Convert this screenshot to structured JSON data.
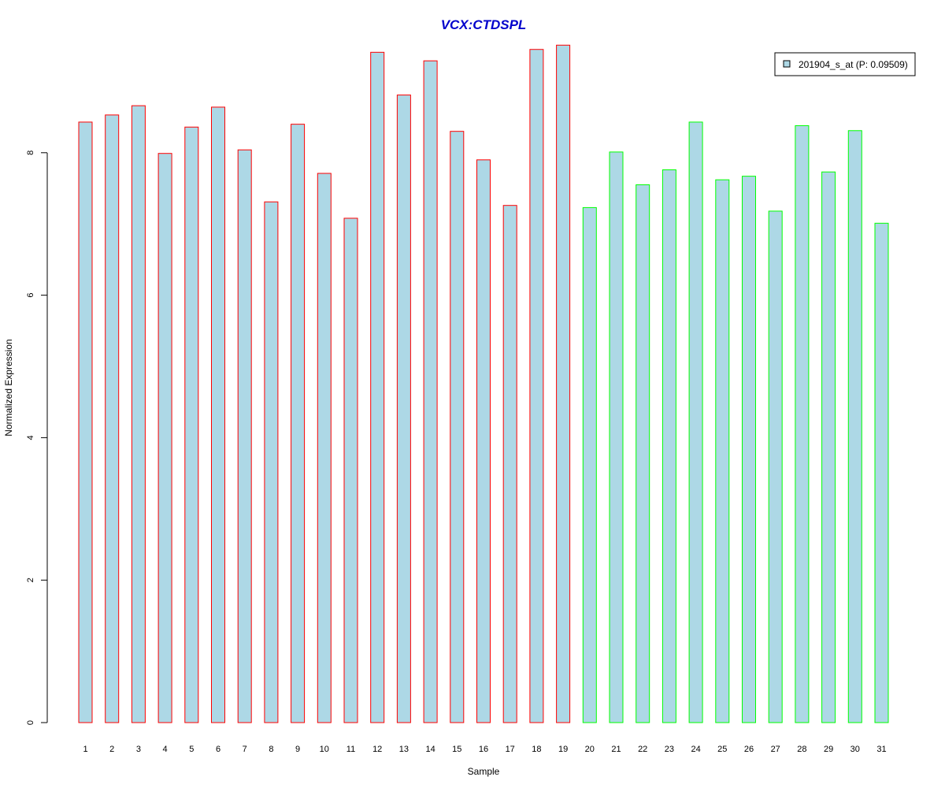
{
  "chart_data": {
    "type": "bar",
    "title": "VCX:CTDSPL",
    "xlabel": "Sample",
    "ylabel": "Normalized Expression",
    "ylim": [
      0,
      9.5
    ],
    "yticks": [
      0,
      2,
      4,
      6,
      8
    ],
    "categories": [
      "1",
      "2",
      "3",
      "4",
      "5",
      "6",
      "7",
      "8",
      "9",
      "10",
      "11",
      "12",
      "13",
      "14",
      "15",
      "16",
      "17",
      "18",
      "19",
      "20",
      "21",
      "22",
      "23",
      "24",
      "25",
      "26",
      "27",
      "28",
      "29",
      "30",
      "31"
    ],
    "series": [
      {
        "name": "201904_s_at (P: 0.09509)",
        "values": [
          8.43,
          8.53,
          8.66,
          7.99,
          8.36,
          8.64,
          8.04,
          7.31,
          8.4,
          7.71,
          7.08,
          9.41,
          8.81,
          9.29,
          8.3,
          7.9,
          7.26,
          9.45,
          9.51,
          7.23,
          8.01,
          7.55,
          7.76,
          8.43,
          7.62,
          7.67,
          7.18,
          8.38,
          7.73,
          8.31,
          7.01
        ]
      }
    ],
    "group_colors": [
      "#ff0000",
      "#ff0000",
      "#ff0000",
      "#ff0000",
      "#ff0000",
      "#ff0000",
      "#ff0000",
      "#ff0000",
      "#ff0000",
      "#ff0000",
      "#ff0000",
      "#ff0000",
      "#ff0000",
      "#ff0000",
      "#ff0000",
      "#ff0000",
      "#ff0000",
      "#ff0000",
      "#ff0000",
      "#00ff00",
      "#00ff00",
      "#00ff00",
      "#00ff00",
      "#00ff00",
      "#00ff00",
      "#00ff00",
      "#00ff00",
      "#00ff00",
      "#00ff00",
      "#00ff00",
      "#00ff00"
    ],
    "bar_fill": "#add8e6",
    "title_color": "#0000cc",
    "legend": {
      "position": "top-right",
      "label": "201904_s_at (P: 0.09509)"
    },
    "grid": false
  }
}
